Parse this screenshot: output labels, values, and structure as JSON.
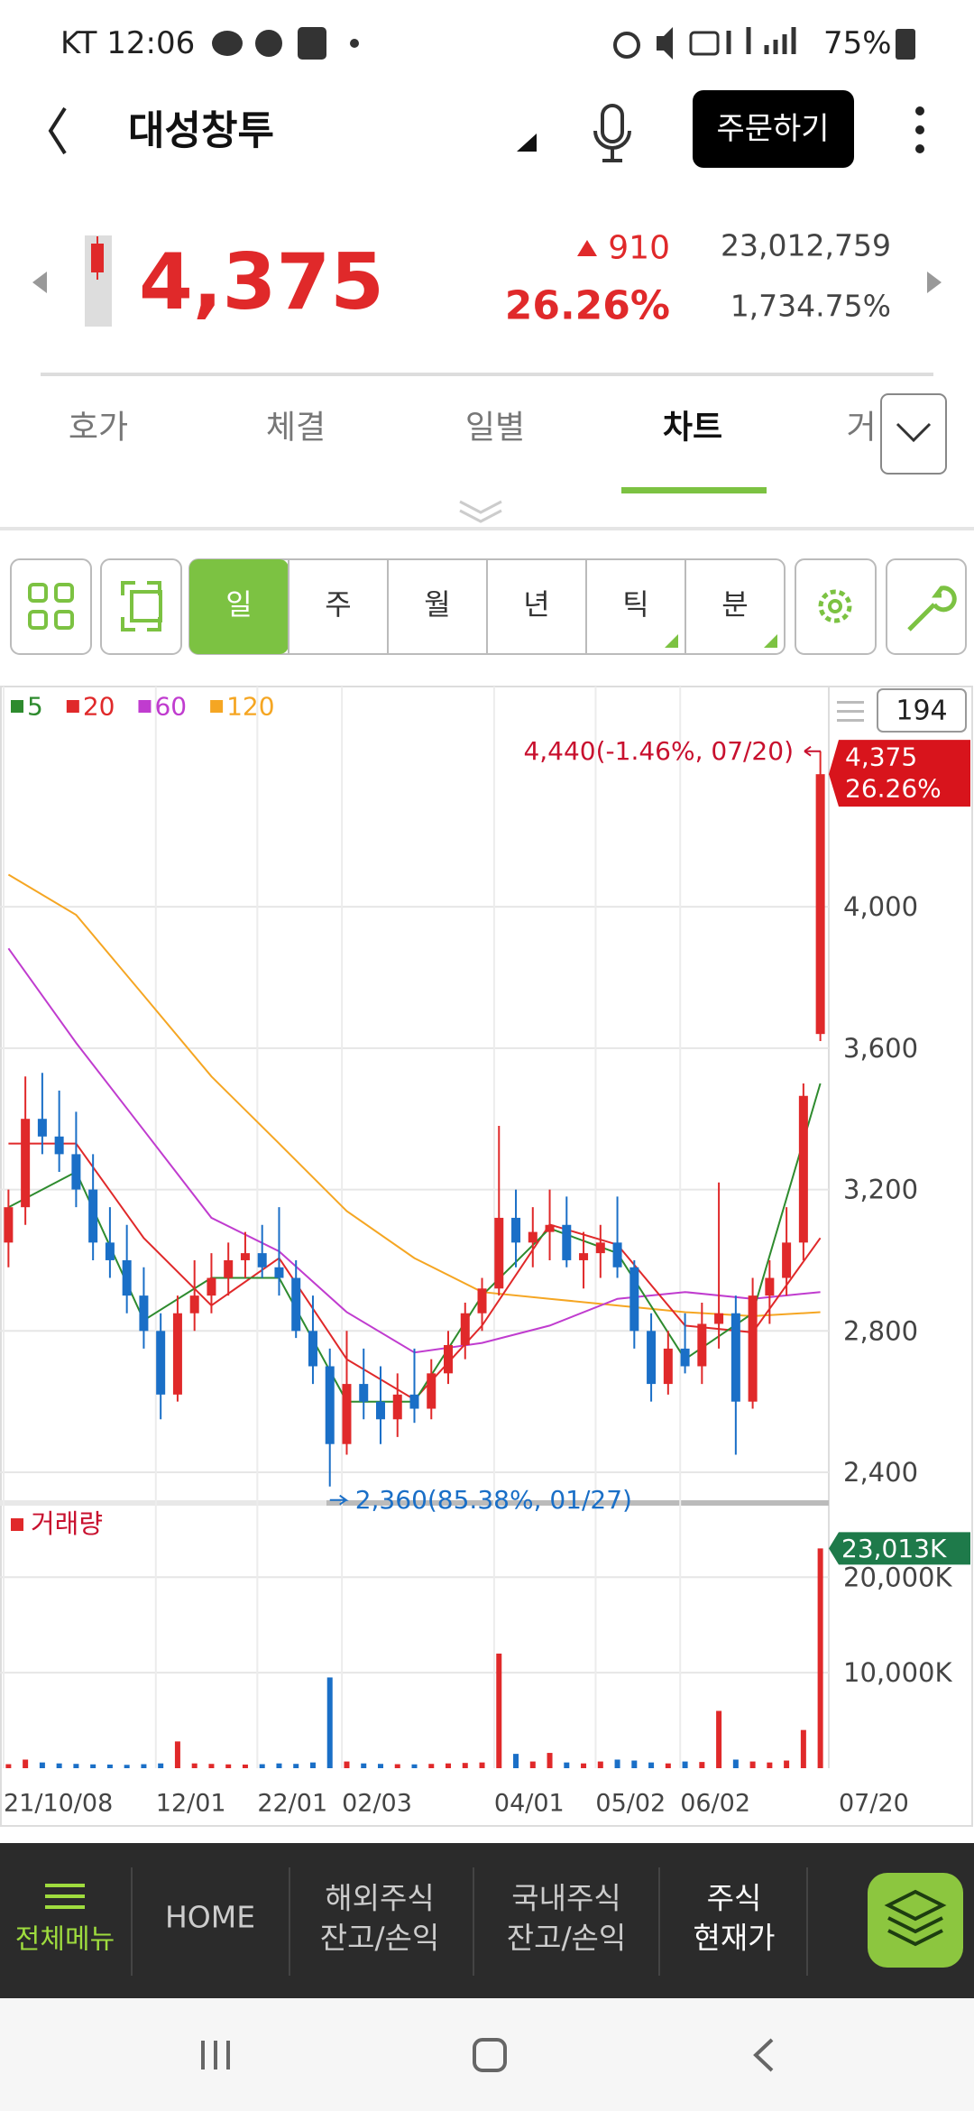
{
  "status_bar": {
    "left": "KT 12:06",
    "battery": "75%"
  },
  "header": {
    "title": "대성창투",
    "order_button": "주문하기"
  },
  "quote": {
    "price": "4,375",
    "change": "910",
    "change_rate": "26.26%",
    "volume": "23,012,759",
    "volume_rate": "1,734.75%"
  },
  "tabs": [
    "호가",
    "체결",
    "일별",
    "차트",
    "거"
  ],
  "toolbar": {
    "periods": [
      "일",
      "주",
      "월",
      "년",
      "틱",
      "분"
    ]
  },
  "chart_data": {
    "type": "candlestick",
    "candle_count": 194,
    "categories": [
      "21/10/08",
      null,
      null,
      null,
      null,
      null,
      null,
      null,
      null,
      "12/01",
      null,
      null,
      null,
      null,
      null,
      "22/01",
      null,
      null,
      null,
      null,
      "02/03",
      null,
      null,
      null,
      null,
      null,
      null,
      null,
      null,
      "04/01",
      null,
      null,
      null,
      null,
      null,
      "05/02",
      null,
      null,
      null,
      null,
      "06/02",
      null,
      null,
      null,
      null,
      null,
      null,
      null,
      "07/20"
    ],
    "ohlc": [
      [
        3050,
        3200,
        2980,
        3150
      ],
      [
        3150,
        3520,
        3100,
        3400
      ],
      [
        3400,
        3530,
        3300,
        3350
      ],
      [
        3350,
        3480,
        3250,
        3300
      ],
      [
        3300,
        3420,
        3150,
        3200
      ],
      [
        3200,
        3300,
        3000,
        3050
      ],
      [
        3050,
        3150,
        2950,
        3000
      ],
      [
        3000,
        3100,
        2850,
        2900
      ],
      [
        2900,
        2980,
        2750,
        2800
      ],
      [
        2800,
        2850,
        2550,
        2620
      ],
      [
        2620,
        2900,
        2600,
        2850
      ],
      [
        2850,
        3000,
        2800,
        2900
      ],
      [
        2900,
        3020,
        2850,
        2950
      ],
      [
        2950,
        3050,
        2900,
        3000
      ],
      [
        3000,
        3080,
        2950,
        3020
      ],
      [
        3020,
        3100,
        2950,
        2980
      ],
      [
        2980,
        3150,
        2900,
        2950
      ],
      [
        2950,
        3000,
        2780,
        2800
      ],
      [
        2800,
        2900,
        2650,
        2700
      ],
      [
        2700,
        2750,
        2360,
        2480
      ],
      [
        2480,
        2800,
        2450,
        2650
      ],
      [
        2650,
        2750,
        2550,
        2600
      ],
      [
        2600,
        2700,
        2480,
        2550
      ],
      [
        2550,
        2680,
        2500,
        2620
      ],
      [
        2620,
        2750,
        2540,
        2580
      ],
      [
        2580,
        2720,
        2550,
        2680
      ],
      [
        2680,
        2800,
        2650,
        2760
      ],
      [
        2760,
        2880,
        2720,
        2850
      ],
      [
        2850,
        2950,
        2800,
        2920
      ],
      [
        2920,
        3380,
        2900,
        3120
      ],
      [
        3120,
        3200,
        2980,
        3050
      ],
      [
        3050,
        3150,
        2980,
        3080
      ],
      [
        3080,
        3200,
        3000,
        3100
      ],
      [
        3100,
        3180,
        2980,
        3000
      ],
      [
        3000,
        3080,
        2920,
        3020
      ],
      [
        3020,
        3100,
        2950,
        3050
      ],
      [
        3050,
        3180,
        2950,
        2980
      ],
      [
        2980,
        3000,
        2750,
        2800
      ],
      [
        2800,
        2850,
        2600,
        2650
      ],
      [
        2650,
        2800,
        2620,
        2750
      ],
      [
        2750,
        2850,
        2680,
        2700
      ],
      [
        2700,
        2880,
        2650,
        2820
      ],
      [
        2820,
        3220,
        2750,
        2850
      ],
      [
        2850,
        2900,
        2450,
        2600
      ],
      [
        2600,
        2950,
        2580,
        2900
      ],
      [
        2900,
        3000,
        2820,
        2950
      ],
      [
        2950,
        3150,
        2900,
        3050
      ],
      [
        3050,
        3500,
        3000,
        3465
      ],
      [
        3640,
        4440,
        3620,
        4375
      ]
    ],
    "up_color": "#e0292a",
    "down_color": "#1a6fc7",
    "series": [
      {
        "name": "5",
        "color": "#2e8b2e",
        "x": [
          0,
          4,
          8,
          12,
          16,
          20,
          24,
          28,
          32,
          36,
          40,
          44,
          48
        ],
        "values": [
          3150,
          3250,
          2830,
          2950,
          2950,
          2600,
          2600,
          2900,
          3090,
          3020,
          2720,
          2850,
          3500
        ]
      },
      {
        "name": "20",
        "color": "#e0292a",
        "x": [
          0,
          4,
          8,
          12,
          16,
          20,
          24,
          28,
          32,
          36,
          40,
          44,
          48
        ],
        "values": [
          3330,
          3330,
          3063,
          2872,
          3006,
          2720,
          2606,
          2815,
          3101,
          3044,
          2815,
          2796,
          3063
        ]
      },
      {
        "name": "60",
        "color": "#c03ccf",
        "x": [
          0,
          4,
          8,
          12,
          16,
          20,
          24,
          28,
          32,
          36,
          40,
          44,
          48
        ],
        "values": [
          3882,
          3615,
          3368,
          3120,
          3025,
          2853,
          2739,
          2766,
          2815,
          2891,
          2910,
          2891,
          2910
        ]
      },
      {
        "name": "120",
        "color": "#f5a623",
        "x": [
          0,
          4,
          8,
          12,
          16,
          20,
          24,
          28,
          32,
          36,
          40,
          44,
          48
        ],
        "values": [
          4091,
          3977,
          3749,
          3520,
          3330,
          3139,
          3006,
          2910,
          2891,
          2872,
          2853,
          2842,
          2853
        ]
      }
    ],
    "ylim": [
      2321,
      4623
    ],
    "yticks": [
      {
        "value": 4000,
        "label": "4,000"
      },
      {
        "value": 3600,
        "label": "3,600"
      },
      {
        "value": 3200,
        "label": "3,200"
      },
      {
        "value": 2800,
        "label": "2,800"
      },
      {
        "value": 2400,
        "label": "2,400"
      }
    ],
    "grid": true,
    "high_note": "4,440(-1.46%, 07/20)",
    "low_note": "2,360(85.38%, 01/27)",
    "price_tag": {
      "value": 4375,
      "label": "4,375",
      "change": "26.26%"
    },
    "volume": {
      "name": "거래량",
      "values": [
        420,
        900,
        600,
        500,
        450,
        400,
        380,
        350,
        420,
        500,
        2800,
        500,
        450,
        400,
        380,
        420,
        500,
        450,
        600,
        9500,
        700,
        500,
        450,
        420,
        400,
        450,
        500,
        550,
        600,
        12000,
        1500,
        700,
        1600,
        600,
        500,
        700,
        900,
        800,
        600,
        500,
        700,
        650,
        6000,
        900,
        700,
        600,
        800,
        4000,
        23013
      ],
      "ylim": [
        0,
        27300
      ],
      "yticks": [
        {
          "value": 20000,
          "label": "20,000K"
        },
        {
          "value": 10000,
          "label": "10,000K"
        }
      ],
      "current": {
        "value": 23013,
        "label": "23,013K"
      }
    }
  },
  "bottom_nav": {
    "menu": "전체메뉴",
    "items": [
      [
        "HOME"
      ],
      [
        "해외주식",
        "잔고/손익"
      ],
      [
        "국내주식",
        "잔고/손익"
      ],
      [
        "주식",
        "현재가"
      ]
    ]
  }
}
